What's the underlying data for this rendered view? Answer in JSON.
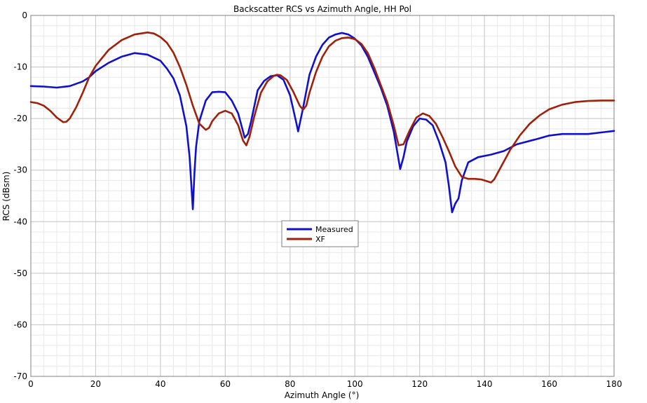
{
  "chart_data": {
    "type": "line",
    "title": "Backscatter RCS vs Azimuth Angle, HH Pol",
    "xlabel": "Azimuth Angle (°)",
    "ylabel": "RCS (dBsm)",
    "xlim": [
      0,
      180
    ],
    "ylim": [
      -70,
      0
    ],
    "xticks": [
      0,
      20,
      40,
      60,
      80,
      100,
      120,
      140,
      160,
      180
    ],
    "yticks": [
      0,
      -10,
      -20,
      -30,
      -40,
      -50,
      -60,
      -70
    ],
    "x_minor_step": 4,
    "y_minor_step": 2,
    "grid": true,
    "legend": "center",
    "series": [
      {
        "name": "Measured",
        "color": "#1010cc",
        "points": [
          [
            0,
            -13.7
          ],
          [
            4,
            -13.8
          ],
          [
            8,
            -14.0
          ],
          [
            12,
            -13.7
          ],
          [
            16,
            -12.8
          ],
          [
            18,
            -12.0
          ],
          [
            20,
            -10.8
          ],
          [
            24,
            -9.2
          ],
          [
            28,
            -8.0
          ],
          [
            32,
            -7.3
          ],
          [
            36,
            -7.6
          ],
          [
            40,
            -8.8
          ],
          [
            42,
            -10.3
          ],
          [
            44,
            -12.2
          ],
          [
            46,
            -15.5
          ],
          [
            48,
            -21.5
          ],
          [
            49,
            -27.5
          ],
          [
            50,
            -37.6
          ],
          [
            50.5,
            -30.5
          ],
          [
            51,
            -25.5
          ],
          [
            52,
            -20.5
          ],
          [
            54,
            -16.5
          ],
          [
            56,
            -14.9
          ],
          [
            58,
            -14.8
          ],
          [
            60,
            -14.9
          ],
          [
            62,
            -16.5
          ],
          [
            64,
            -19.0
          ],
          [
            66,
            -23.7
          ],
          [
            67,
            -23.0
          ],
          [
            68,
            -20.5
          ],
          [
            70,
            -14.5
          ],
          [
            72,
            -12.7
          ],
          [
            74,
            -11.8
          ],
          [
            76,
            -11.6
          ],
          [
            78,
            -12.5
          ],
          [
            80,
            -15.5
          ],
          [
            82,
            -21.0
          ],
          [
            82.5,
            -22.5
          ],
          [
            83,
            -21.0
          ],
          [
            84,
            -18.0
          ],
          [
            86,
            -11.5
          ],
          [
            88,
            -8.0
          ],
          [
            90,
            -5.7
          ],
          [
            92,
            -4.3
          ],
          [
            94,
            -3.7
          ],
          [
            96,
            -3.4
          ],
          [
            98,
            -3.7
          ],
          [
            100,
            -4.5
          ],
          [
            102,
            -5.8
          ],
          [
            104,
            -8.0
          ],
          [
            106,
            -11.0
          ],
          [
            108,
            -14.0
          ],
          [
            110,
            -17.5
          ],
          [
            112,
            -22.5
          ],
          [
            114,
            -29.8
          ],
          [
            115,
            -27.5
          ],
          [
            116,
            -24.5
          ],
          [
            118,
            -21.5
          ],
          [
            120,
            -20.0
          ],
          [
            122,
            -20.2
          ],
          [
            124,
            -21.3
          ],
          [
            126,
            -24.5
          ],
          [
            128,
            -28.5
          ],
          [
            129,
            -33.0
          ],
          [
            130,
            -38.2
          ],
          [
            131,
            -36.5
          ],
          [
            132,
            -35.5
          ],
          [
            133,
            -32.0
          ],
          [
            135,
            -28.5
          ],
          [
            138,
            -27.5
          ],
          [
            142,
            -27.0
          ],
          [
            146,
            -26.3
          ],
          [
            150,
            -25.0
          ],
          [
            156,
            -24.0
          ],
          [
            160,
            -23.3
          ],
          [
            164,
            -23.0
          ],
          [
            168,
            -23.0
          ],
          [
            172,
            -23.0
          ],
          [
            176,
            -22.7
          ],
          [
            180,
            -22.4
          ]
        ]
      },
      {
        "name": "XF",
        "color": "#a0200a",
        "points": [
          [
            0,
            -16.8
          ],
          [
            2,
            -17.0
          ],
          [
            4,
            -17.5
          ],
          [
            6,
            -18.5
          ],
          [
            8,
            -19.8
          ],
          [
            10,
            -20.7
          ],
          [
            11,
            -20.6
          ],
          [
            12,
            -20.0
          ],
          [
            14,
            -17.8
          ],
          [
            16,
            -15.0
          ],
          [
            18,
            -12.0
          ],
          [
            20,
            -9.8
          ],
          [
            24,
            -6.7
          ],
          [
            28,
            -4.8
          ],
          [
            32,
            -3.7
          ],
          [
            36,
            -3.3
          ],
          [
            38,
            -3.5
          ],
          [
            40,
            -4.2
          ],
          [
            42,
            -5.3
          ],
          [
            44,
            -7.2
          ],
          [
            46,
            -10.0
          ],
          [
            48,
            -13.5
          ],
          [
            50,
            -17.5
          ],
          [
            52,
            -21.0
          ],
          [
            54,
            -22.2
          ],
          [
            55,
            -21.8
          ],
          [
            56,
            -20.5
          ],
          [
            58,
            -19.0
          ],
          [
            60,
            -18.5
          ],
          [
            62,
            -19.0
          ],
          [
            64,
            -21.3
          ],
          [
            65.5,
            -24.3
          ],
          [
            66.5,
            -25.2
          ],
          [
            67.5,
            -23.5
          ],
          [
            69,
            -19.5
          ],
          [
            71,
            -15.0
          ],
          [
            73,
            -12.8
          ],
          [
            75,
            -11.7
          ],
          [
            76,
            -11.5
          ],
          [
            77,
            -11.6
          ],
          [
            79,
            -12.5
          ],
          [
            81,
            -14.8
          ],
          [
            83,
            -17.5
          ],
          [
            84,
            -18.3
          ],
          [
            85,
            -17.5
          ],
          [
            86,
            -15.0
          ],
          [
            88,
            -11.0
          ],
          [
            90,
            -8.0
          ],
          [
            92,
            -6.0
          ],
          [
            94,
            -4.9
          ],
          [
            96,
            -4.4
          ],
          [
            98,
            -4.3
          ],
          [
            100,
            -4.6
          ],
          [
            102,
            -5.5
          ],
          [
            104,
            -7.3
          ],
          [
            106,
            -10.2
          ],
          [
            108,
            -13.5
          ],
          [
            110,
            -16.8
          ],
          [
            112,
            -21.3
          ],
          [
            113.5,
            -25.2
          ],
          [
            115,
            -25.0
          ],
          [
            117,
            -22.2
          ],
          [
            119,
            -19.8
          ],
          [
            121,
            -19.0
          ],
          [
            123,
            -19.5
          ],
          [
            125,
            -21.0
          ],
          [
            127,
            -23.5
          ],
          [
            129,
            -26.3
          ],
          [
            131,
            -29.3
          ],
          [
            133,
            -31.3
          ],
          [
            135,
            -31.7
          ],
          [
            137,
            -31.7
          ],
          [
            139,
            -31.8
          ],
          [
            141,
            -32.2
          ],
          [
            142,
            -32.4
          ],
          [
            143,
            -31.8
          ],
          [
            145,
            -29.5
          ],
          [
            148,
            -26.0
          ],
          [
            151,
            -23.2
          ],
          [
            154,
            -21.0
          ],
          [
            157,
            -19.4
          ],
          [
            160,
            -18.2
          ],
          [
            164,
            -17.3
          ],
          [
            168,
            -16.8
          ],
          [
            172,
            -16.6
          ],
          [
            176,
            -16.5
          ],
          [
            180,
            -16.5
          ]
        ]
      }
    ]
  }
}
